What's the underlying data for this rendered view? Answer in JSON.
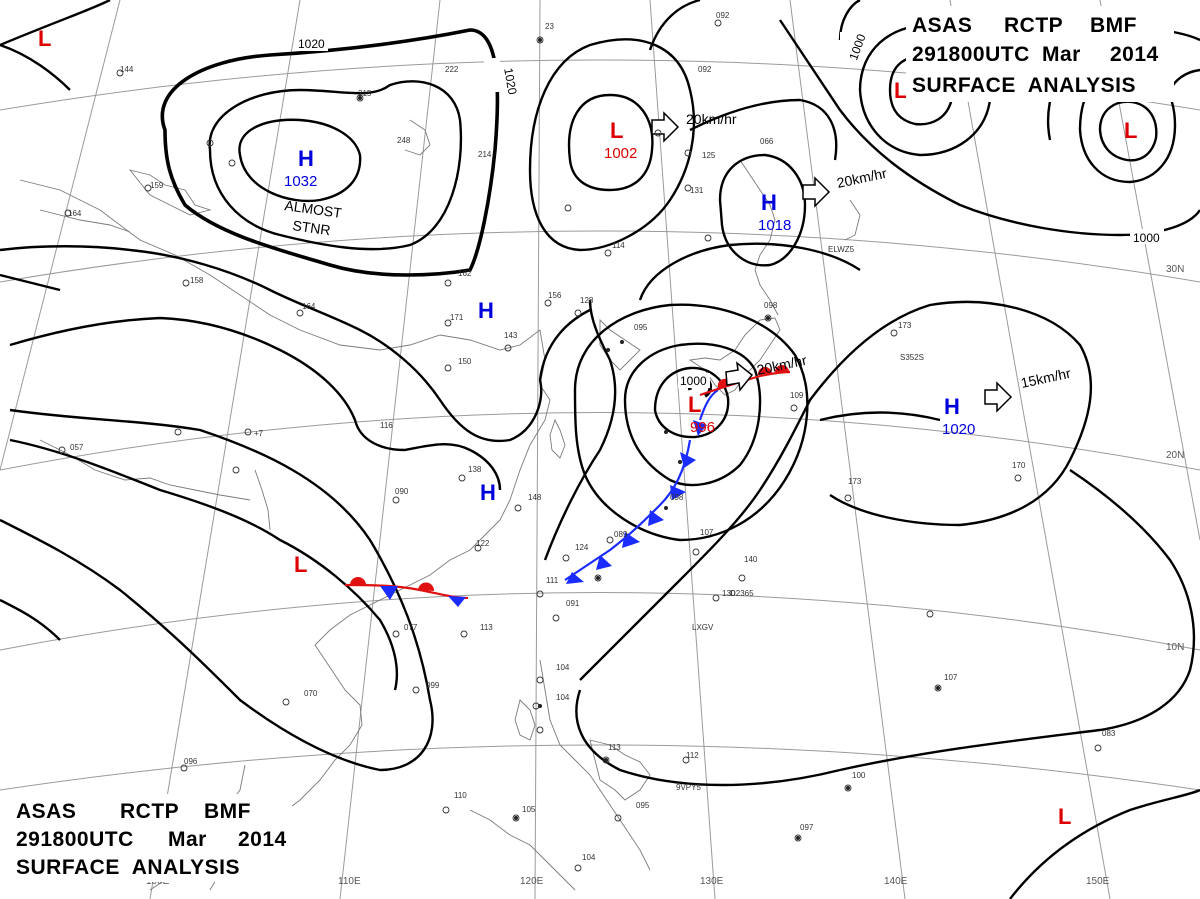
{
  "header_top": {
    "line1": [
      "ASAS",
      "RCTP",
      "BMF"
    ],
    "line2": [
      "291800UTC",
      "Mar",
      "2014"
    ],
    "line3": "SURFACE  ANALYSIS"
  },
  "header_bottom": {
    "line1": [
      "ASAS",
      "RCTP",
      "BMF"
    ],
    "line2": [
      "291800UTC",
      "Mar",
      "2014"
    ],
    "line3": "SURFACE  ANALYSIS"
  },
  "colors": {
    "high": "#0000dd",
    "low": "#dd0000",
    "cold_front": "#1a2cff",
    "warm_front": "#e01010"
  },
  "pressure_systems": [
    {
      "type": "H",
      "value": "1032"
    },
    {
      "type": "H",
      "value": "1018"
    },
    {
      "type": "H",
      "value": "1020"
    },
    {
      "type": "H",
      "value": ""
    },
    {
      "type": "H",
      "value": ""
    },
    {
      "type": "L",
      "value": "1002"
    },
    {
      "type": "L",
      "value": "996"
    },
    {
      "type": "L",
      "value": ""
    },
    {
      "type": "L",
      "value": ""
    },
    {
      "type": "L",
      "value": ""
    },
    {
      "type": "L",
      "value": ""
    },
    {
      "type": "L",
      "value": ""
    }
  ],
  "almost_stnr": [
    "ALMOST",
    "STNR"
  ],
  "movements": [
    "20km/hr",
    "20km/hr",
    "20km/hr",
    "15km/hr"
  ],
  "isobar_labels": [
    "1020",
    "1020",
    "1000",
    "1000",
    "1000"
  ],
  "longitude_labels": [
    "100E",
    "110E",
    "120E",
    "130E",
    "140E",
    "150E"
  ],
  "latitude_labels": [
    "30N",
    "20N",
    "10N"
  ],
  "station_labels": [
    "ELWZ5",
    "LXGV",
    "9VPY5",
    "S352S",
    "D2365"
  ]
}
